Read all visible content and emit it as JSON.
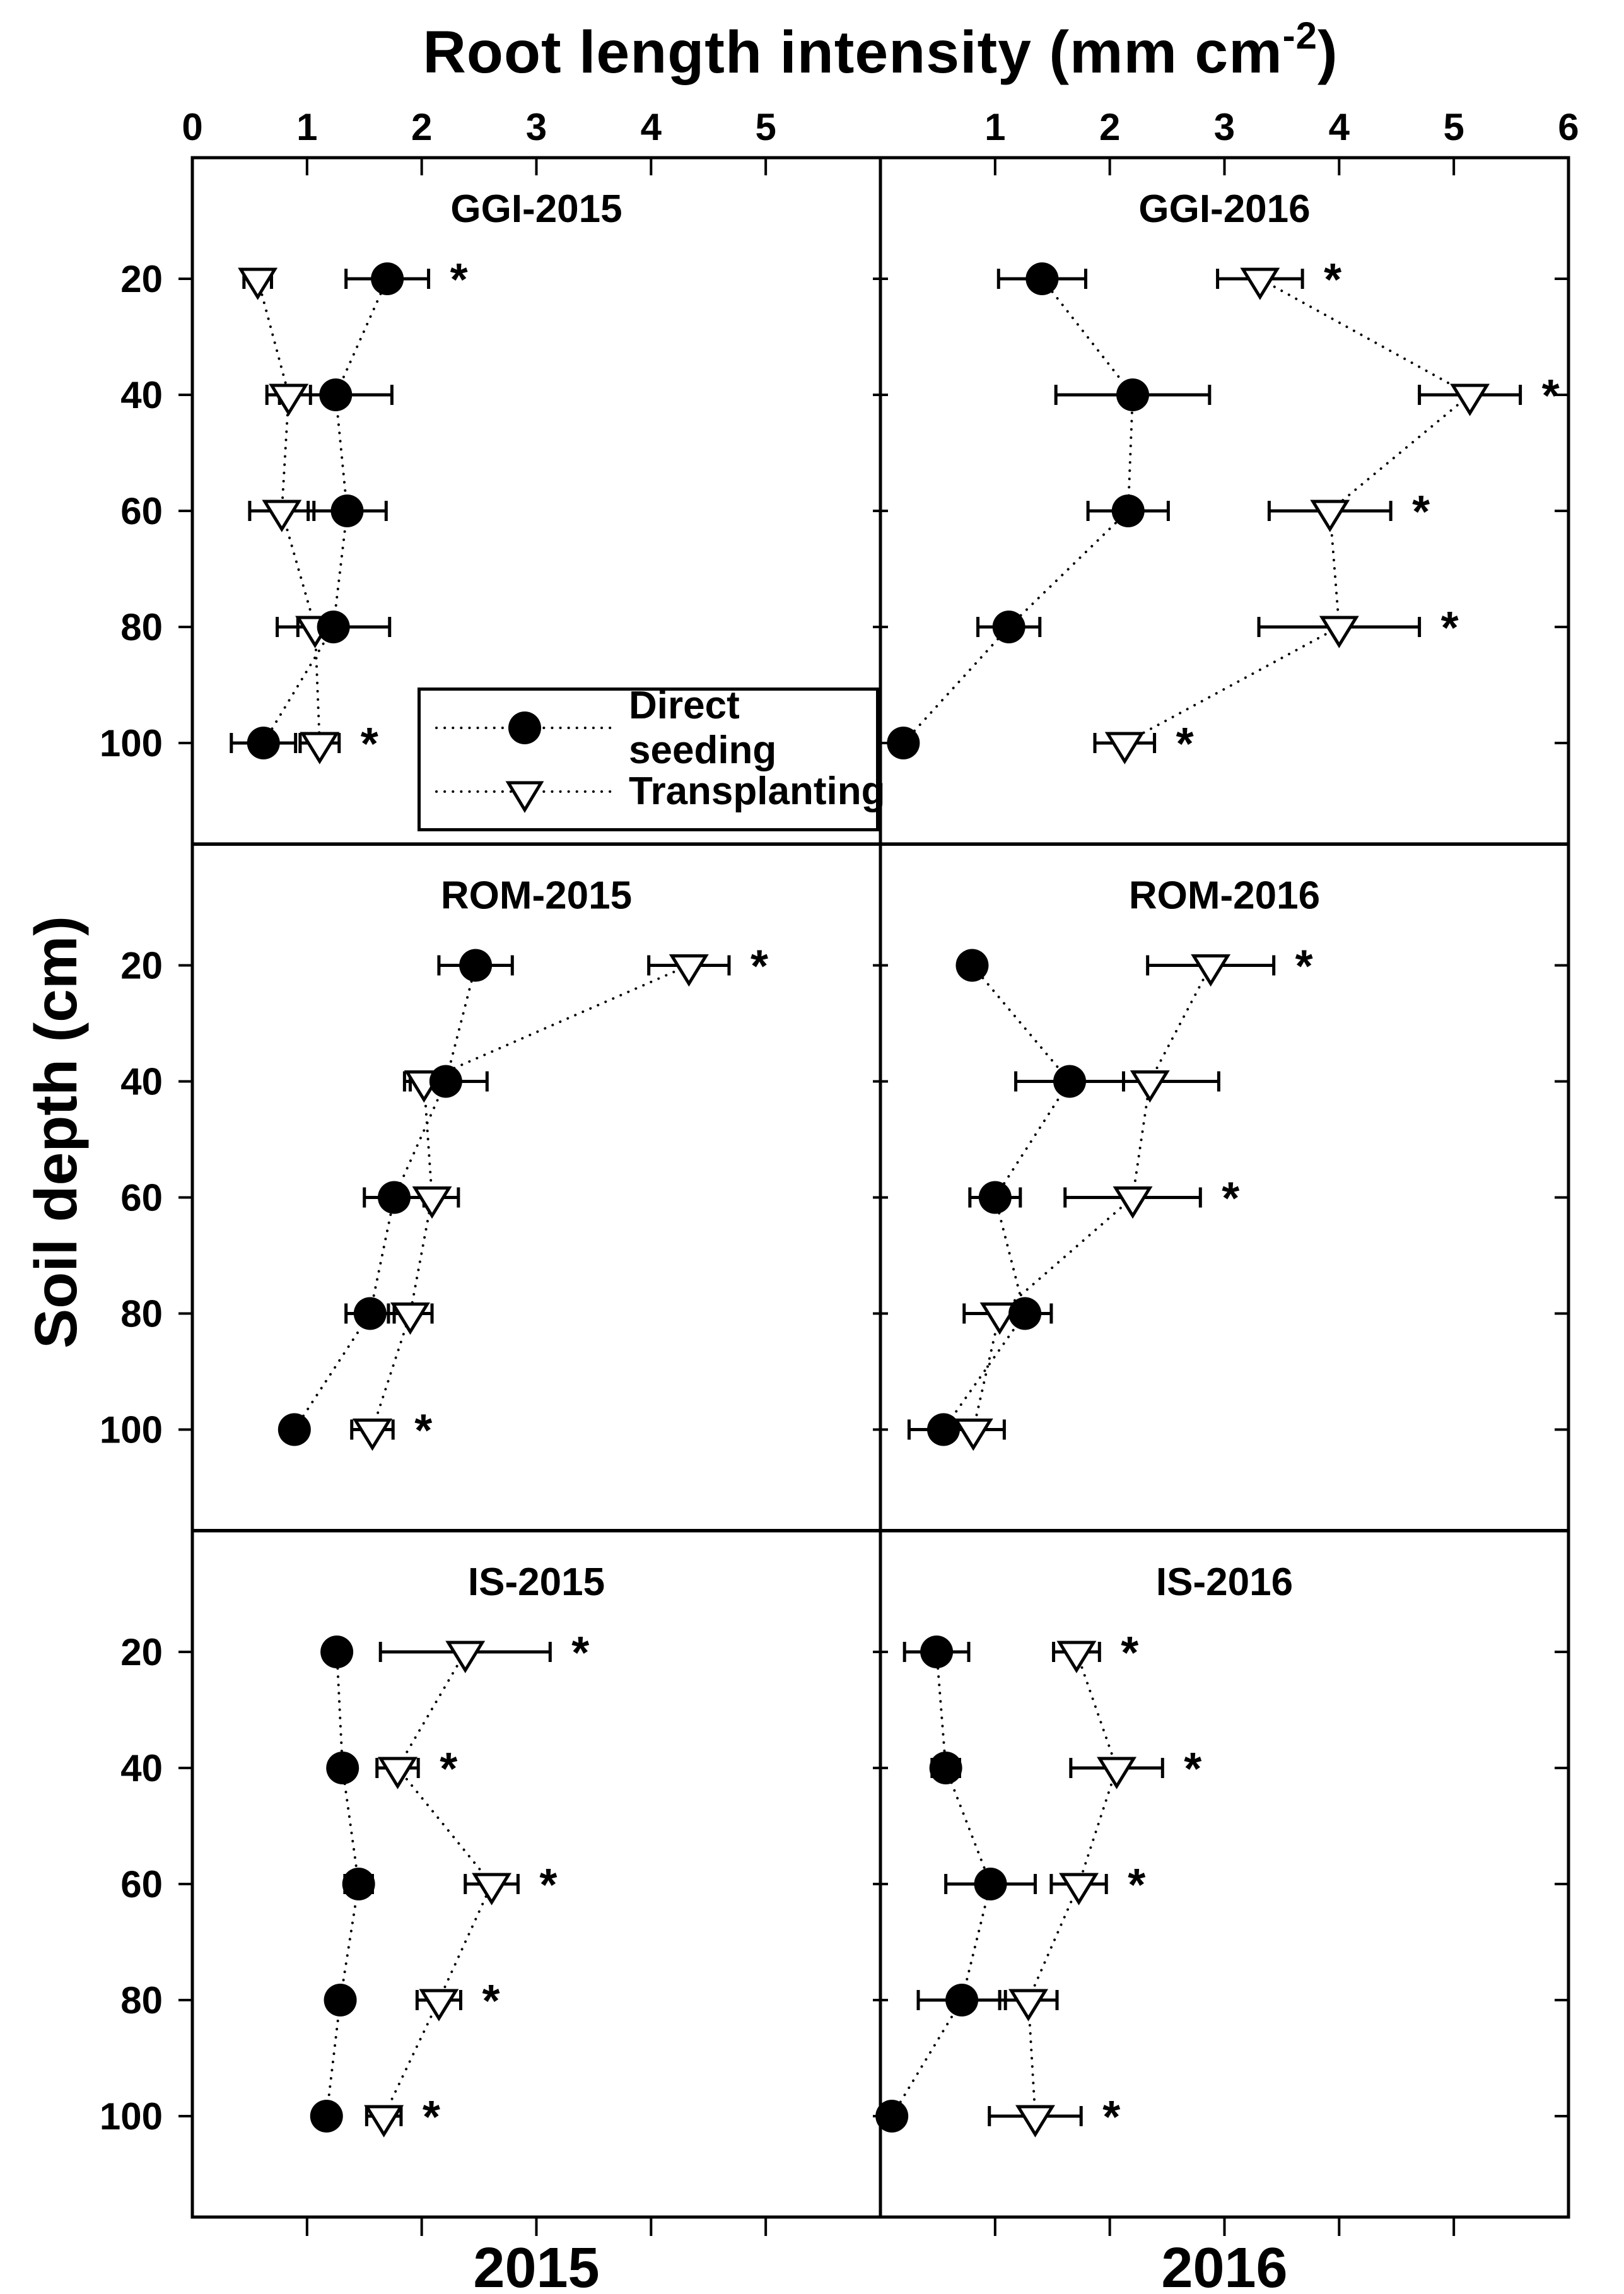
{
  "figure": {
    "title_main": "Root length intensity (mm cm",
    "title_sup": "-2",
    "title_end": ")",
    "ylabel": "Soil depth (cm)",
    "years": [
      "2015",
      "2016"
    ],
    "colors": {
      "foreground": "#000000",
      "background": "#ffffff"
    }
  },
  "chart_data": {
    "type": "scatter",
    "title": "Root length intensity (mm cm⁻²)",
    "xlabel": "Root length intensity (mm cm⁻²)",
    "ylabel": "Soil depth (cm)",
    "depths": [
      20,
      40,
      60,
      80,
      100
    ],
    "xlim": [
      0,
      6
    ],
    "grid": false,
    "legend_position": "inside top-left panel, below data",
    "x_ticks_left_column": [
      0,
      1,
      2,
      3,
      4,
      5
    ],
    "x_ticks_right_column": [
      1,
      2,
      3,
      4,
      5,
      6
    ],
    "legend": [
      {
        "label": "Direct seeding",
        "marker": "filled-circle"
      },
      {
        "label": "Transplanting",
        "marker": "open-triangle"
      }
    ],
    "panels": [
      {
        "title": "GGI-2015",
        "col": 0,
        "row": 0,
        "series": [
          {
            "name": "Direct seeding",
            "values": [
              1.7,
              1.25,
              1.35,
              1.23,
              0.62
            ],
            "errors": [
              0.36,
              0.49,
              0.34,
              0.49,
              0.28
            ]
          },
          {
            "name": "Transplanting",
            "values": [
              0.57,
              0.84,
              0.78,
              1.07,
              1.11
            ],
            "errors": [
              0.12,
              0.19,
              0.28,
              0.15,
              0.17
            ]
          }
        ],
        "significant": [
          true,
          false,
          false,
          false,
          true
        ]
      },
      {
        "title": "GGI-2016",
        "col": 1,
        "row": 0,
        "series": [
          {
            "name": "Direct seeding",
            "values": [
              1.41,
              2.2,
              2.16,
              1.12,
              0.2
            ],
            "errors": [
              0.38,
              0.67,
              0.35,
              0.27,
              0.05
            ]
          },
          {
            "name": "Transplanting",
            "values": [
              3.31,
              5.14,
              3.92,
              4.0,
              2.13
            ],
            "errors": [
              0.37,
              0.44,
              0.53,
              0.7,
              0.26
            ]
          }
        ],
        "significant": [
          true,
          true,
          true,
          true,
          true
        ]
      },
      {
        "title": "ROM-2015",
        "col": 0,
        "row": 1,
        "series": [
          {
            "name": "Direct seeding",
            "values": [
              2.47,
              2.21,
              1.76,
              1.55,
              0.89
            ],
            "errors": [
              0.32,
              0.36,
              0.26,
              0.21,
              0.1
            ]
          },
          {
            "name": "Transplanting",
            "values": [
              4.33,
              2.02,
              2.09,
              1.9,
              1.57
            ],
            "errors": [
              0.35,
              0.12,
              0.23,
              0.19,
              0.18
            ]
          }
        ],
        "significant": [
          true,
          false,
          false,
          false,
          true
        ]
      },
      {
        "title": "ROM-2016",
        "col": 1,
        "row": 1,
        "series": [
          {
            "name": "Direct seeding",
            "values": [
              0.8,
              1.65,
              1.0,
              1.26,
              0.55
            ],
            "errors": [
              0.06,
              0.47,
              0.22,
              0.23,
              0.3
            ]
          },
          {
            "name": "Transplanting",
            "values": [
              2.88,
              2.35,
              2.2,
              1.04,
              0.81
            ],
            "errors": [
              0.55,
              0.6,
              0.59,
              0.31,
              0.27
            ]
          }
        ],
        "significant": [
          true,
          false,
          true,
          false,
          false
        ]
      },
      {
        "title": "IS-2015",
        "col": 0,
        "row": 2,
        "series": [
          {
            "name": "Direct seeding",
            "values": [
              1.26,
              1.31,
              1.45,
              1.29,
              1.17
            ],
            "errors": [
              0.06,
              0.1,
              0.12,
              0.1,
              0.08
            ]
          },
          {
            "name": "Transplanting",
            "values": [
              2.38,
              1.79,
              2.61,
              2.15,
              1.67
            ],
            "errors": [
              0.74,
              0.18,
              0.23,
              0.19,
              0.15
            ]
          }
        ],
        "significant": [
          true,
          true,
          true,
          true,
          true
        ]
      },
      {
        "title": "IS-2016",
        "col": 1,
        "row": 2,
        "series": [
          {
            "name": "Direct seeding",
            "values": [
              0.49,
              0.57,
              0.96,
              0.71,
              0.1
            ],
            "errors": [
              0.28,
              0.12,
              0.39,
              0.38,
              0.05
            ]
          },
          {
            "name": "Transplanting",
            "values": [
              1.71,
              2.06,
              1.73,
              1.29,
              1.35
            ],
            "errors": [
              0.2,
              0.4,
              0.24,
              0.25,
              0.4
            ]
          }
        ],
        "significant": [
          true,
          true,
          true,
          false,
          true
        ]
      }
    ]
  }
}
